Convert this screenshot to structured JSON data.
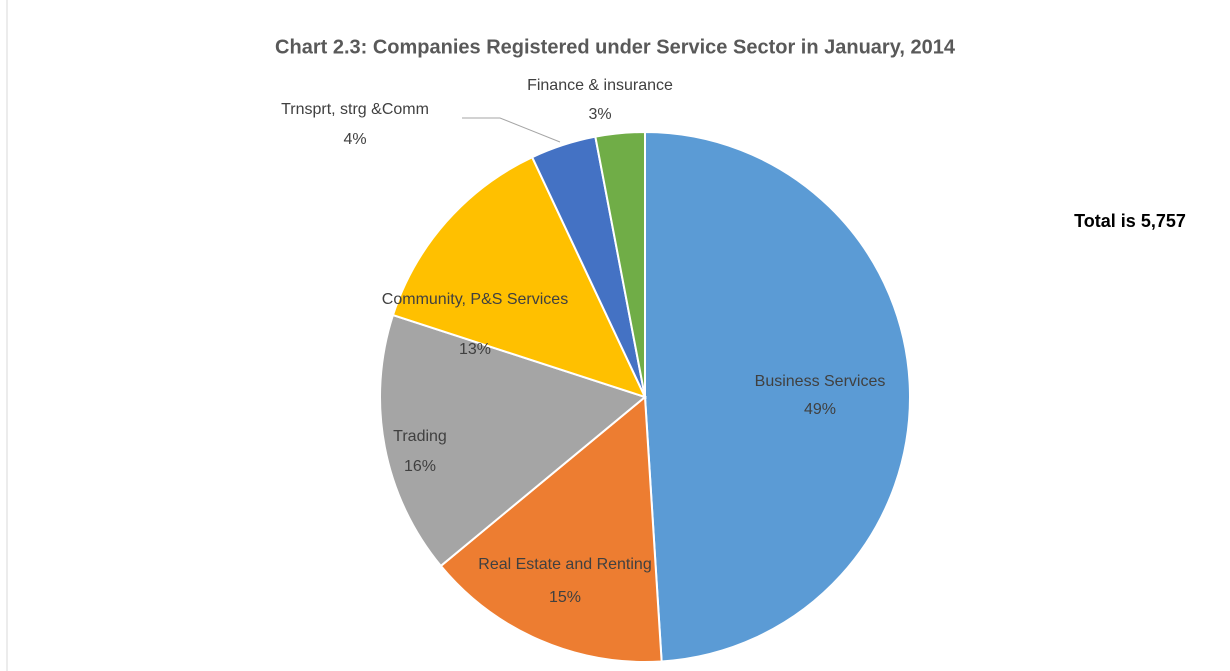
{
  "chart_data": {
    "type": "pie",
    "title": "Chart 2.3:  Companies Registered under Service Sector in January, 2014",
    "annotation": "Total is 5,757",
    "categories": [
      "Business Services",
      "Real Estate and Renting",
      "Trading",
      "Community, P&S Services",
      "Trnsprt, strg &Comm",
      "Finance & insurance"
    ],
    "values": [
      49,
      15,
      16,
      13,
      4,
      3
    ],
    "value_labels": [
      "49%",
      "15%",
      "16%",
      "13%",
      "4%",
      "3%"
    ],
    "colors": [
      "#5b9bd5",
      "#ed7d31",
      "#a5a5a5",
      "#ffc000",
      "#4472c4",
      "#70ad47"
    ]
  }
}
